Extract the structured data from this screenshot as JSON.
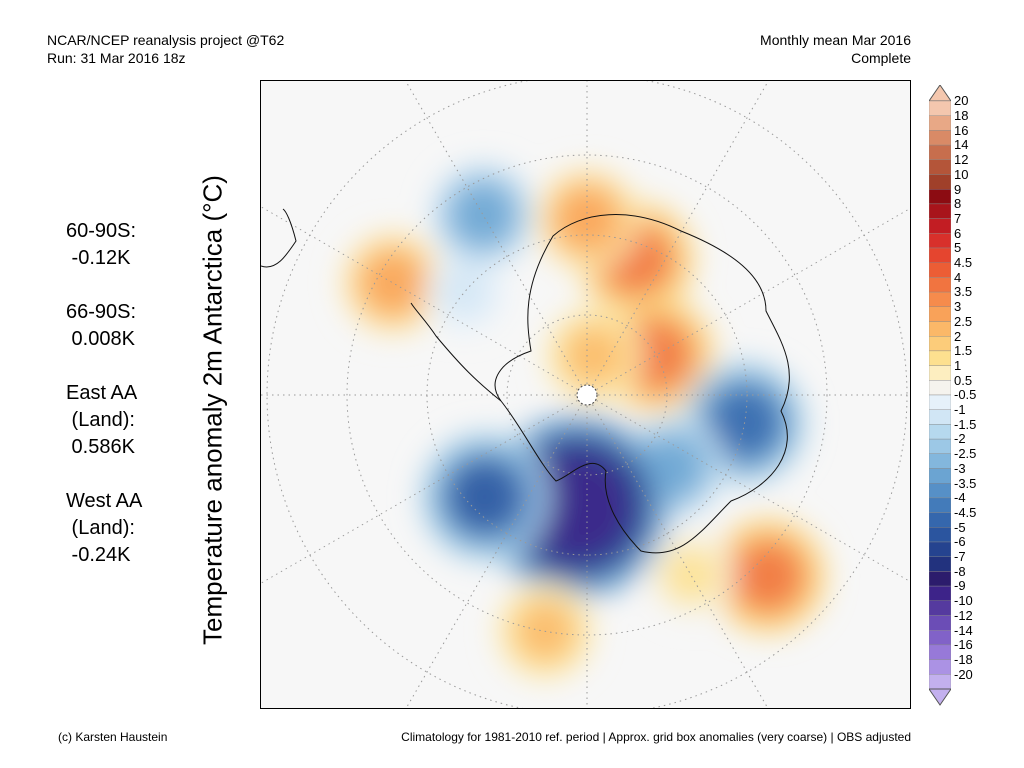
{
  "header": {
    "line1": "NCAR/NCEP reanalysis project @T62",
    "line2": "Run: 31 Mar 2016 18z",
    "right1": "Monthly mean Mar 2016",
    "right2": "Complete"
  },
  "stats": [
    {
      "text": "60-90S:\n -0.12K"
    },
    {
      "text": "66-90S:\n 0.008K"
    },
    {
      "text": "East AA\n (Land):\n 0.586K"
    },
    {
      "text": "West AA\n (Land):\n -0.24K"
    }
  ],
  "y_label": "Temperature anomaly 2m Antarctica (°C)",
  "footer": {
    "left": "(c) Karsten Haustein",
    "right": "Climatology for 1981-2010 ref. period | Approx. grid box anomalies (very coarse) | OBS adjusted"
  },
  "colorbar": {
    "labels": [
      "20",
      "18",
      "16",
      "14",
      "12",
      "10",
      "9",
      "8",
      "7",
      "6",
      "5",
      "4.5",
      "4",
      "3.5",
      "3",
      "2.5",
      "2",
      "1.5",
      "1",
      "0.5",
      "-0.5",
      "-1",
      "-1.5",
      "-2",
      "-2.5",
      "-3",
      "-3.5",
      "-4",
      "-4.5",
      "-5",
      "-6",
      "-7",
      "-8",
      "-9",
      "-10",
      "-12",
      "-14",
      "-16",
      "-18",
      "-20"
    ],
    "colors": [
      "#f4c7ae",
      "#e8a886",
      "#d98a66",
      "#c76e4d",
      "#b45539",
      "#a0402a",
      "#8c0c12",
      "#a8141b",
      "#c21d23",
      "#d8302b",
      "#e5452f",
      "#ec5d35",
      "#f17440",
      "#f68b4c",
      "#f9a259",
      "#fbb868",
      "#fccc7a",
      "#fde08f",
      "#fdeec0",
      "#f5f3ee",
      "#e6f1fa",
      "#d1e6f5",
      "#b6d9ee",
      "#9cc8e6",
      "#83b7dd",
      "#6ba4d2",
      "#5690c7",
      "#437bba",
      "#3567ad",
      "#2b559f",
      "#25438f",
      "#22327e",
      "#2c1c6c",
      "#3d2389",
      "#553a9f",
      "#6b4db6",
      "#8162c8",
      "#9779d8",
      "#ab92e4",
      "#c3b0ee"
    ]
  },
  "map": {
    "ocean_color": "#f7f7f7",
    "coast_color": "#111111",
    "grid_color": "#999999",
    "anomalies": [
      {
        "lat": -72,
        "lon": 20,
        "value": 4
      },
      {
        "lat": -80,
        "lon": 60,
        "value": 4
      },
      {
        "lat": -68,
        "lon": 0,
        "value": 3
      },
      {
        "lat": -85,
        "lon": 10,
        "value": 2.5
      },
      {
        "lat": -70,
        "lon": 100,
        "value": -4.5
      },
      {
        "lat": -76,
        "lon": 130,
        "value": -3
      },
      {
        "lat": -58,
        "lon": 135,
        "value": 4
      },
      {
        "lat": -64,
        "lon": 150,
        "value": 1.5
      },
      {
        "lat": -76,
        "lon": 185,
        "value": -9
      },
      {
        "lat": -72,
        "lon": 225,
        "value": -5
      },
      {
        "lat": -60,
        "lon": 190,
        "value": 2.5
      },
      {
        "lat": -62,
        "lon": 300,
        "value": 3
      },
      {
        "lat": -70,
        "lon": 310,
        "value": -1
      },
      {
        "lat": -64,
        "lon": 330,
        "value": -3
      }
    ]
  }
}
